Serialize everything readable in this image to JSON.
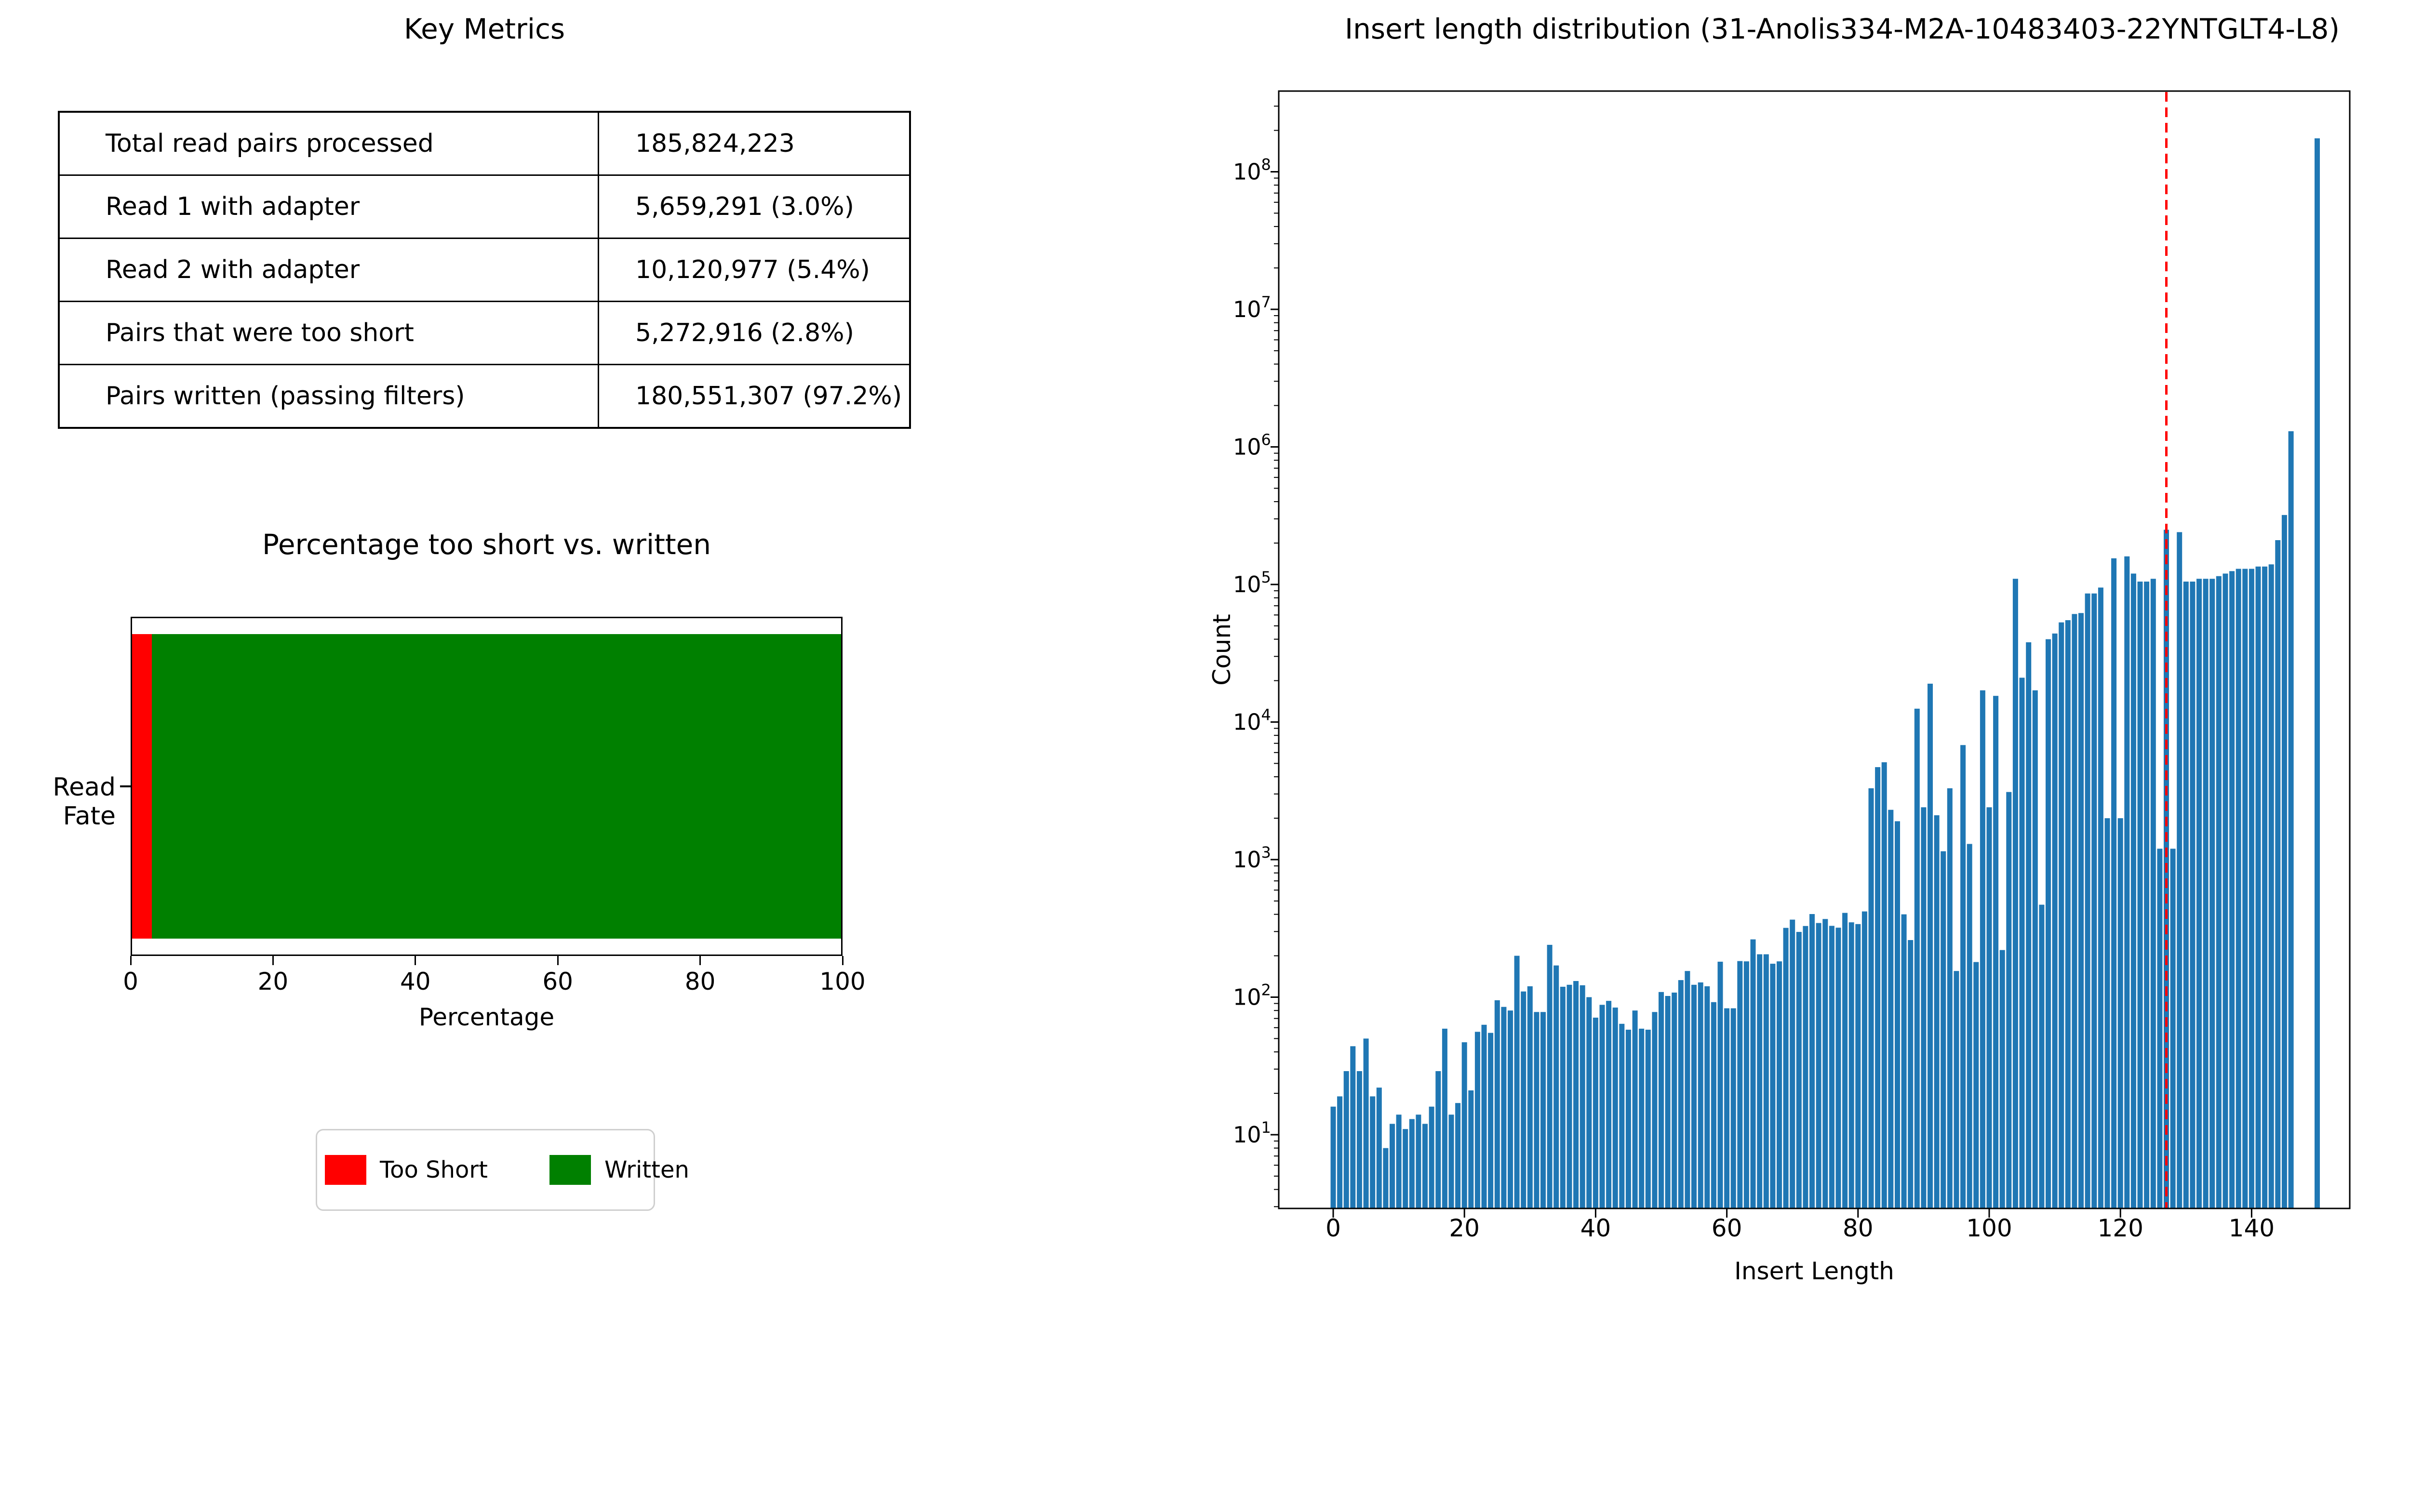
{
  "key_metrics": {
    "title": "Key Metrics",
    "rows": [
      {
        "label": "Total read pairs processed",
        "value": "185,824,223"
      },
      {
        "label": "Read 1 with adapter",
        "value": "5,659,291 (3.0%)"
      },
      {
        "label": "Read 2 with adapter",
        "value": "10,120,977 (5.4%)"
      },
      {
        "label": "Pairs that were too short",
        "value": "5,272,916 (2.8%)"
      },
      {
        "label": "Pairs written (passing filters)",
        "value": "180,551,307 (97.2%)"
      }
    ]
  },
  "chart_data": [
    {
      "id": "percentage-too-short-vs-written",
      "type": "bar",
      "orientation": "horizontal",
      "stacked": true,
      "title": "Percentage too short vs. written",
      "categories": [
        "Read Fate"
      ],
      "series": [
        {
          "name": "Too Short",
          "values": [
            2.8
          ],
          "color": "#ff0000"
        },
        {
          "name": "Written",
          "values": [
            97.2
          ],
          "color": "#008000"
        }
      ],
      "xlabel": "Percentage",
      "xlim": [
        0,
        100
      ],
      "xticks": [
        0,
        20,
        40,
        60,
        80,
        100
      ],
      "grid": false,
      "legend_position": "below-center"
    },
    {
      "id": "insert-length-distribution",
      "type": "bar",
      "title": "Insert length distribution (31-Anolis334-M2A-10483403-22YNTGLT4-L8)",
      "xlabel": "Insert Length",
      "ylabel": "Count",
      "yscale": "log",
      "bar_color": "#1f77b4",
      "vline": {
        "x": 127,
        "color": "#ff0000",
        "style": "dashed"
      },
      "xlim": [
        -8,
        155
      ],
      "ylim": [
        2.9,
        386000000
      ],
      "xticks": [
        0,
        20,
        40,
        60,
        80,
        100,
        120,
        140
      ],
      "ytick_exponents": [
        1,
        2,
        3,
        4,
        5,
        6,
        7,
        8
      ],
      "grid": false,
      "x_start": 0,
      "values": [
        16,
        19,
        29,
        44,
        29,
        50,
        19,
        22,
        8,
        12,
        14,
        11,
        13,
        14,
        12,
        16,
        29,
        59,
        14,
        17,
        47,
        21,
        56,
        63,
        55,
        95,
        85,
        80,
        200,
        110,
        120,
        78,
        78,
        240,
        170,
        119,
        123,
        131,
        122,
        100,
        71,
        88,
        94,
        84,
        64,
        58,
        80,
        59,
        58,
        78,
        109,
        102,
        108,
        133,
        155,
        123,
        128,
        120,
        92,
        181,
        83,
        83,
        183,
        182,
        263,
        205,
        205,
        175,
        182,
        319,
        366,
        298,
        329,
        402,
        346,
        370,
        330,
        320,
        410,
        350,
        340,
        420,
        3300,
        4700,
        5100,
        2300,
        1900,
        400,
        260,
        12500,
        2400,
        19000,
        2100,
        1150,
        3300,
        155,
        6800,
        1300,
        180,
        17000,
        2400,
        15500,
        220,
        3100,
        110000,
        21000,
        38000,
        17000,
        470,
        40000,
        44000,
        53000,
        55000,
        61000,
        62000,
        86000,
        86000,
        95000,
        2000,
        155000,
        2000,
        160000,
        120000,
        105000,
        105000,
        110000,
        1200,
        250000,
        1200,
        240000,
        105000,
        105000,
        110000,
        110000,
        110000,
        115000,
        120000,
        125000,
        130000,
        130000,
        130000,
        135000,
        135000,
        140000,
        210000,
        320000,
        1300000,
        0,
        0,
        0,
        175000000
      ]
    }
  ]
}
